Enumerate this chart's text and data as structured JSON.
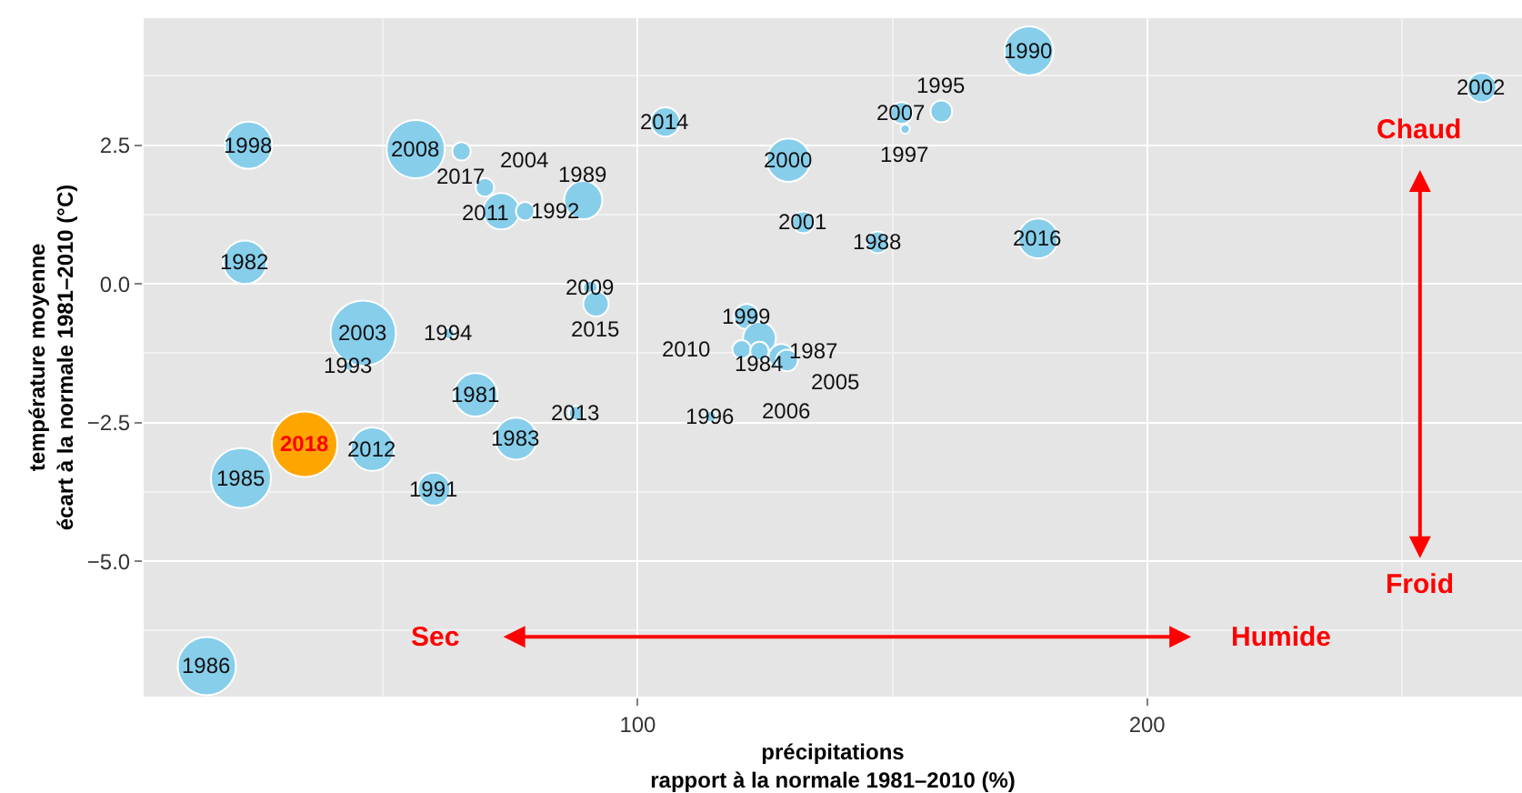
{
  "chart_data": {
    "type": "bubble",
    "xlabel": "précipitations\nrapport à la normale 1981–2010 (%)",
    "ylabel": "température moyenne\nécart à la normale 1981–2010 (°C)",
    "xlim": [
      3,
      273.6
    ],
    "ylim": [
      -7.44,
      4.79
    ],
    "xticks": [
      100,
      200
    ],
    "yticks": [
      {
        "value": -5,
        "label": "−5.0"
      },
      {
        "value": -2.5,
        "label": "−2.5"
      },
      {
        "value": 0,
        "label": "0.0"
      },
      2.5
    ],
    "grid": true,
    "series": [
      {
        "color": "#87ceeb",
        "x": [
          23.6,
          22.9,
          56.4,
          65.4,
          70,
          73.2,
          77.9,
          89.3,
          105.4,
          176.8,
          151.8,
          159.6,
          152.5,
          129.6,
          132.5,
          147.1,
          178.6,
          265.7,
          121.4,
          123.9,
          120.4,
          123.9,
          128.2,
          129.3,
          90.7,
          91.8,
          46.1,
          62.9,
          43.2,
          68.2,
          87.9,
          114.3,
          76.1,
          47.9,
          22.1,
          60,
          15.4
        ],
        "values": [
          2.5,
          0.39,
          2.43,
          2.39,
          1.74,
          1.31,
          1.31,
          1.51,
          2.92,
          4.2,
          3.08,
          3.11,
          2.79,
          2.23,
          1.11,
          0.75,
          0.82,
          3.54,
          -0.59,
          -0.98,
          -1.18,
          -1.21,
          -1.31,
          -1.38,
          -0.07,
          -0.36,
          -0.89,
          -0.89,
          -1.48,
          -2.0,
          -2.33,
          -2.39,
          -2.79,
          -2.98,
          -3.5,
          -3.7,
          -6.89
        ],
        "sizes": [
          0.52,
          0.44,
          0.79,
          0.08,
          0.08,
          0.31,
          0.08,
          0.34,
          0.2,
          0.56,
          0.11,
          0.11,
          0.02,
          0.44,
          0.11,
          0.11,
          0.37,
          0.2,
          0.15,
          0.25,
          0.08,
          0.08,
          0.15,
          0.11,
          0.05,
          0.15,
          1,
          0.03,
          0.02,
          0.44,
          0.05,
          0.03,
          0.41,
          0.44,
          0.84,
          0.25,
          0.79
        ]
      },
      {
        "color": "#ffa500",
        "x": [
          34.6
        ],
        "values": [
          -2.89
        ],
        "sizes": [
          1
        ]
      }
    ],
    "annotations": [
      {
        "text": "1998",
        "x": 23.6,
        "y": 2.5
      },
      {
        "text": "1982",
        "x": 22.9,
        "y": 0.39
      },
      {
        "text": "2008",
        "x": 56.4,
        "y": 2.43
      },
      {
        "text": "2017",
        "x": 65.4,
        "y": 2.39
      },
      {
        "text": "2011",
        "x": 70,
        "y": 1.74
      },
      {
        "text": "1992",
        "x": 73.2,
        "y": 1.31
      },
      {
        "text": "2004",
        "x": 77.9,
        "y": 1.31
      },
      {
        "text": "1989",
        "x": 89.3,
        "y": 1.51
      },
      {
        "text": "2014",
        "x": 105.4,
        "y": 2.92
      },
      {
        "text": "1990",
        "x": 176.8,
        "y": 4.2
      },
      {
        "text": "2007",
        "x": 151.8,
        "y": 3.08
      },
      {
        "text": "1995",
        "x": 159.6,
        "y": 3.11
      },
      {
        "text": "1997",
        "x": 152.5,
        "y": 2.79
      },
      {
        "text": "2000",
        "x": 129.6,
        "y": 2.23
      },
      {
        "text": "2001",
        "x": 132.5,
        "y": 1.11
      },
      {
        "text": "1988",
        "x": 147.1,
        "y": 0.75
      },
      {
        "text": "2016",
        "x": 178.6,
        "y": 0.82
      },
      {
        "text": "2002",
        "x": 265.7,
        "y": 3.54
      },
      {
        "text": "1999",
        "x": 121.4,
        "y": -0.59
      },
      {
        "text": "1984",
        "x": 123.9,
        "y": -0.98
      },
      {
        "text": "2010",
        "x": 120.4,
        "y": -1.18
      },
      {
        "text": "1987",
        "x": 123.9,
        "y": -1.21
      },
      {
        "text": "2005",
        "x": 128.2,
        "y": -1.31
      },
      {
        "text": "2006",
        "x": 129.3,
        "y": -1.38
      },
      {
        "text": "2009",
        "x": 90.7,
        "y": -0.07
      },
      {
        "text": "2015",
        "x": 91.8,
        "y": -0.36
      },
      {
        "text": "2003",
        "x": 46.1,
        "y": -0.89
      },
      {
        "text": "1994",
        "x": 62.9,
        "y": -0.89
      },
      {
        "text": "1993",
        "x": 43.2,
        "y": -1.48
      },
      {
        "text": "1981",
        "x": 68.2,
        "y": -2.0
      },
      {
        "text": "2013",
        "x": 87.9,
        "y": -2.33
      },
      {
        "text": "1996",
        "x": 114.3,
        "y": -2.39
      },
      {
        "text": "1983",
        "x": 76.1,
        "y": -2.79
      },
      {
        "text": "2012",
        "x": 47.9,
        "y": -2.98
      },
      {
        "text": "1985",
        "x": 22.1,
        "y": -3.5
      },
      {
        "text": "1991",
        "x": 60,
        "y": -3.7
      },
      {
        "text": "1986",
        "x": 15.4,
        "y": -6.89
      },
      {
        "text": "2018",
        "x": 34.6,
        "y": -2.89
      },
      "Sec",
      "Humide",
      "Chaud",
      "Froid"
    ]
  }
}
